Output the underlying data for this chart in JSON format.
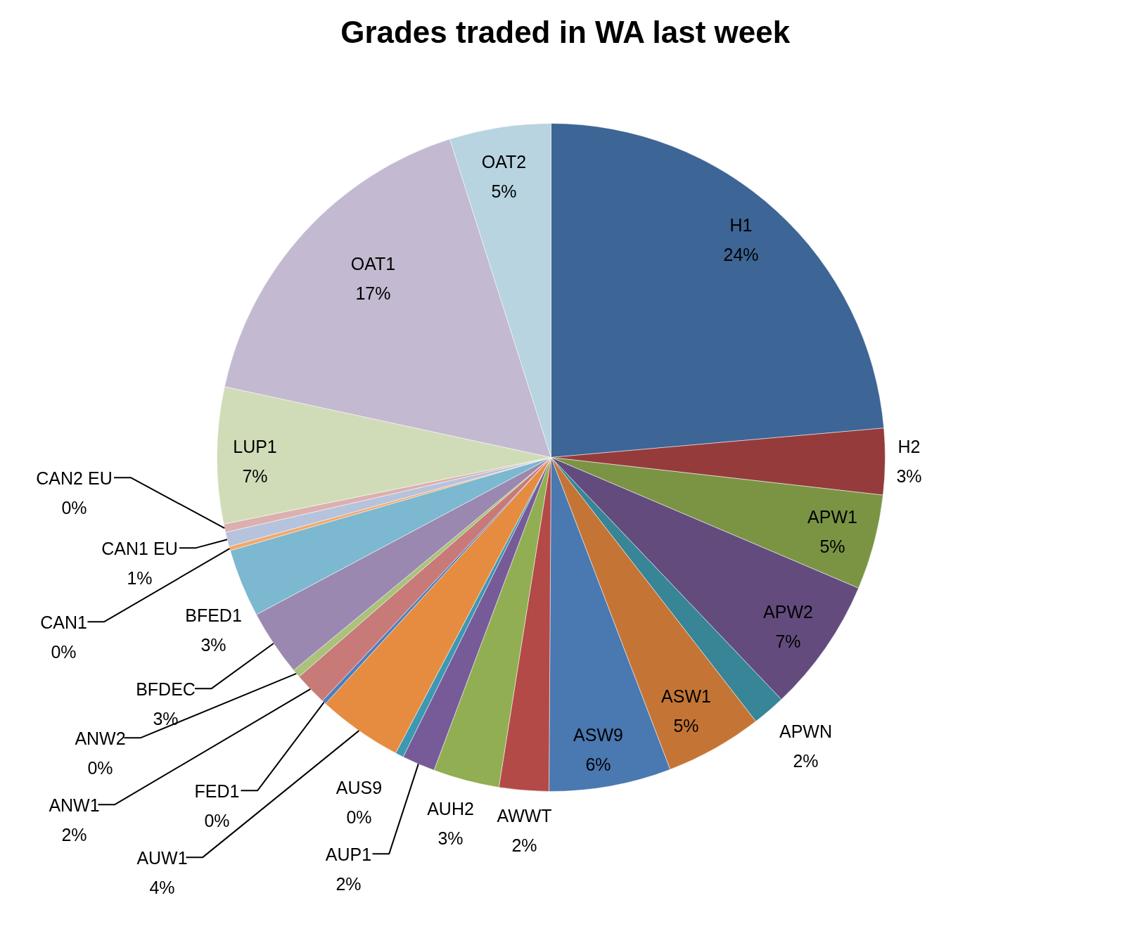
{
  "chart_data": {
    "type": "pie",
    "title": "Grades traded in WA last week",
    "categories": [
      "H1",
      "H2",
      "APW1",
      "APW2",
      "APWN",
      "ASW1",
      "ASW9",
      "AWWT",
      "AUH2",
      "AUP1",
      "AUS9",
      "AUW1",
      "FED1",
      "ANW1",
      "ANW2",
      "BFDEC",
      "BFED1",
      "CAN1",
      "CAN1 EU",
      "CAN2 EU",
      "LUP1",
      "OAT1",
      "OAT2"
    ],
    "values": [
      23.6,
      3.2,
      4.6,
      6.5,
      1.6,
      4.7,
      5.9,
      2.4,
      3.2,
      1.6,
      0.4,
      4.1,
      0.2,
      1.6,
      0.4,
      3.2,
      3.3,
      0.2,
      0.7,
      0.4,
      6.6,
      16.7,
      4.9
    ],
    "value_labels": [
      "24%",
      "3%",
      "5%",
      "7%",
      "2%",
      "5%",
      "6%",
      "2%",
      "3%",
      "2%",
      "0%",
      "4%",
      "0%",
      "2%",
      "0%",
      "3%",
      "3%",
      "0%",
      "1%",
      "0%",
      "7%",
      "17%",
      "5%"
    ],
    "colors": [
      "#3d6595",
      "#963b3b",
      "#7a9444",
      "#634c7d",
      "#378597",
      "#c47535",
      "#4a78b0",
      "#b34a48",
      "#91ae52",
      "#765b98",
      "#3d98b2",
      "#e68c40",
      "#4b7fc0",
      "#c87a78",
      "#aac27a",
      "#9b88b0",
      "#7cb8cf",
      "#f3a86b",
      "#b6c3dd",
      "#dcb0b0",
      "#d0dcb8",
      "#c3b9d0",
      "#b7d4e0"
    ]
  }
}
